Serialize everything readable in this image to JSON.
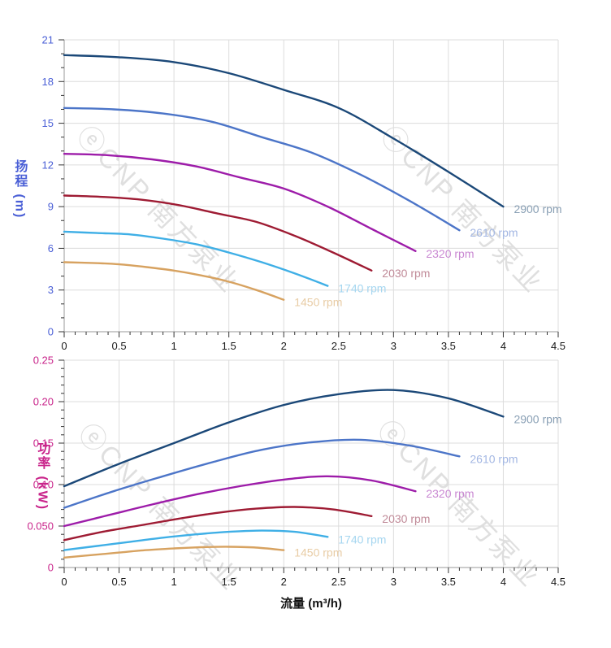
{
  "watermark": {
    "text": "ⓔCNP 南方泵业"
  },
  "chart_data": [
    {
      "type": "line",
      "name": "head-vs-flow",
      "title": "",
      "xlabel": "",
      "ylabel": "扬程 (m)",
      "xlim": [
        0,
        4.5
      ],
      "ylim": [
        0,
        21
      ],
      "grid": "on",
      "legend_position": "curve-end-labels",
      "x_axis": {
        "min": 0,
        "max": 4.5,
        "major": 0.5,
        "minor": 0.1,
        "labels": [
          "0",
          "0.5",
          "1",
          "1.5",
          "2",
          "2.5",
          "3",
          "3.5",
          "4",
          "4.5"
        ],
        "tick_color": "#1a1a1a"
      },
      "y_axis": {
        "min": 0,
        "max": 21,
        "major": 3,
        "minor": 1,
        "labels": [
          "0",
          "3",
          "6",
          "9",
          "12",
          "15",
          "18",
          "21"
        ],
        "tick_color": "#4A5FD6"
      },
      "series": [
        {
          "name": "2900 rpm",
          "color": "#1B4878",
          "label_color": "#8AA0B5",
          "x": [
            0,
            0.5,
            1.0,
            1.5,
            2.0,
            2.5,
            3.0,
            3.5,
            4.0
          ],
          "y": [
            19.9,
            19.75,
            19.4,
            18.6,
            17.4,
            16.1,
            13.9,
            11.5,
            9.0
          ]
        },
        {
          "name": "2610 rpm",
          "color": "#4C75C8",
          "label_color": "#A3B7E3",
          "x": [
            0,
            0.45,
            0.9,
            1.35,
            1.8,
            2.25,
            2.7,
            3.15,
            3.6
          ],
          "y": [
            16.1,
            16.0,
            15.7,
            15.1,
            14.0,
            12.9,
            11.3,
            9.4,
            7.3
          ]
        },
        {
          "name": "2320 rpm",
          "color": "#9D1CA9",
          "label_color": "#C988D2",
          "x": [
            0,
            0.4,
            0.8,
            1.2,
            1.6,
            2.0,
            2.4,
            2.8,
            3.2
          ],
          "y": [
            12.8,
            12.7,
            12.4,
            11.9,
            11.1,
            10.3,
            9.0,
            7.4,
            5.8
          ]
        },
        {
          "name": "2030 rpm",
          "color": "#9E1B33",
          "label_color": "#C08A98",
          "x": [
            0,
            0.35,
            0.7,
            1.05,
            1.4,
            1.75,
            2.1,
            2.45,
            2.8
          ],
          "y": [
            9.8,
            9.7,
            9.5,
            9.1,
            8.5,
            7.9,
            6.9,
            5.7,
            4.4
          ]
        },
        {
          "name": "1740 rpm",
          "color": "#3FAFE6",
          "label_color": "#A5D6F0",
          "x": [
            0,
            0.3,
            0.6,
            0.9,
            1.2,
            1.5,
            1.8,
            2.1,
            2.4
          ],
          "y": [
            7.2,
            7.1,
            7.0,
            6.7,
            6.3,
            5.7,
            5.0,
            4.2,
            3.3
          ]
        },
        {
          "name": "1450 rpm",
          "color": "#D7A260",
          "label_color": "#E8CCA5",
          "x": [
            0,
            0.25,
            0.5,
            0.75,
            1.0,
            1.25,
            1.5,
            1.75,
            2.0
          ],
          "y": [
            5.0,
            4.95,
            4.85,
            4.65,
            4.4,
            4.05,
            3.6,
            3.0,
            2.3
          ]
        }
      ]
    },
    {
      "type": "line",
      "name": "power-vs-flow",
      "title": "",
      "xlabel": "流量 (m³/h)",
      "ylabel": "功率 (kW)",
      "xlim": [
        0,
        4.5
      ],
      "ylim": [
        0,
        0.25
      ],
      "grid": "on",
      "legend_position": "curve-end-labels",
      "x_axis": {
        "min": 0,
        "max": 4.5,
        "major": 0.5,
        "minor": 0.1,
        "labels": [
          "0",
          "0.5",
          "1",
          "1.5",
          "2",
          "2.5",
          "3",
          "3.5",
          "4",
          "4.5"
        ],
        "tick_color": "#1a1a1a"
      },
      "y_axis": {
        "min": 0,
        "max": 0.25,
        "major": 0.05,
        "minor": 0.01,
        "labels": [
          "0",
          "0.050",
          "0.10",
          "0.15",
          "0.20",
          "0.25"
        ],
        "tick_color": "#C9258B"
      },
      "series": [
        {
          "name": "2900 rpm",
          "color": "#1B4878",
          "label_color": "#8AA0B5",
          "x": [
            0,
            0.5,
            1.0,
            1.5,
            2.0,
            2.5,
            3.0,
            3.5,
            4.0
          ],
          "y": [
            0.098,
            0.125,
            0.15,
            0.175,
            0.196,
            0.209,
            0.214,
            0.204,
            0.182
          ]
        },
        {
          "name": "2610 rpm",
          "color": "#4C75C8",
          "label_color": "#A3B7E3",
          "x": [
            0,
            0.45,
            0.9,
            1.35,
            1.8,
            2.25,
            2.7,
            3.15,
            3.6
          ],
          "y": [
            0.072,
            0.092,
            0.11,
            0.127,
            0.142,
            0.151,
            0.154,
            0.147,
            0.134
          ]
        },
        {
          "name": "2320 rpm",
          "color": "#9D1CA9",
          "label_color": "#C988D2",
          "x": [
            0,
            0.4,
            0.8,
            1.2,
            1.6,
            2.0,
            2.4,
            2.8,
            3.2
          ],
          "y": [
            0.05,
            0.063,
            0.076,
            0.088,
            0.098,
            0.106,
            0.11,
            0.105,
            0.092
          ]
        },
        {
          "name": "2030 rpm",
          "color": "#9E1B33",
          "label_color": "#C08A98",
          "x": [
            0,
            0.35,
            0.7,
            1.05,
            1.4,
            1.75,
            2.1,
            2.45,
            2.8
          ],
          "y": [
            0.033,
            0.043,
            0.051,
            0.059,
            0.066,
            0.071,
            0.073,
            0.07,
            0.062
          ]
        },
        {
          "name": "1740 rpm",
          "color": "#3FAFE6",
          "label_color": "#A5D6F0",
          "x": [
            0,
            0.3,
            0.6,
            0.9,
            1.2,
            1.5,
            1.8,
            2.1,
            2.4
          ],
          "y": [
            0.021,
            0.026,
            0.031,
            0.036,
            0.04,
            0.043,
            0.0445,
            0.043,
            0.037
          ]
        },
        {
          "name": "1450 rpm",
          "color": "#D7A260",
          "label_color": "#E8CCA5",
          "x": [
            0,
            0.25,
            0.5,
            0.75,
            1.0,
            1.25,
            1.5,
            1.75,
            2.0
          ],
          "y": [
            0.012,
            0.015,
            0.018,
            0.021,
            0.023,
            0.0245,
            0.025,
            0.024,
            0.021
          ]
        }
      ]
    }
  ]
}
